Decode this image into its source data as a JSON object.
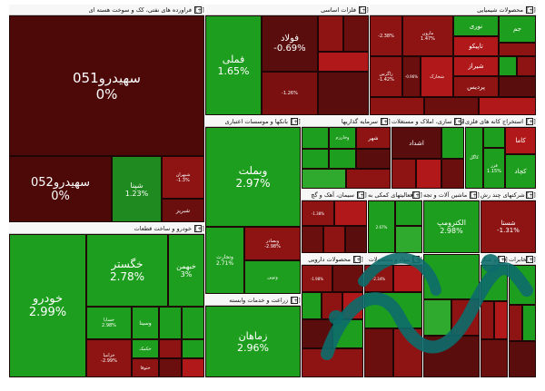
{
  "colors": {
    "strong_green": "#1e9e1e",
    "light_green": "#2faa2f",
    "dark_red": "#5a0d0d",
    "red": "#8e1414",
    "bright_red": "#b0181a",
    "neutral": "#4a0909",
    "header_bg": "#f7f7f7"
  },
  "expand_label": "[+]",
  "sectors": [
    {
      "title": "فراورده های نفتی، کک و سوخت هسته ای"
    },
    {
      "title": "فلزات اساسی"
    },
    {
      "title": "محصولات شیمیایی"
    },
    {
      "title": "بانکها و موسسات اعتباری"
    },
    {
      "title": "سرمایه گذاریها"
    },
    {
      "title": "انبوه سازی، املاک و مستغلات"
    },
    {
      "title": "استخراج کانه های فلزی"
    },
    {
      "title": "خودرو و ساخت قطعات"
    },
    {
      "title": "سیمان، آهک و گچ"
    },
    {
      "title": "فعالیتهای کمکی به"
    },
    {
      "title": "ماشین آلات و تجه"
    },
    {
      "title": "شرکتهای چند رش"
    },
    {
      "title": "محصولات دارویی"
    },
    {
      "title": "مواد و محصولات"
    },
    {
      "title": "قند و شکر"
    },
    {
      "title": "مخابرات"
    },
    {
      "title": "زراعت و خدمات وابسته"
    }
  ],
  "tiles": {
    "sahidaro051": {
      "name": "سهیدرو051",
      "change": "0%"
    },
    "sahidaro052": {
      "name": "سهیدرو052",
      "change": "0%"
    },
    "shapna": {
      "name": "شپنا",
      "change": "1.23%"
    },
    "shabriz": {
      "name": "شبریز"
    },
    "shbahran": {
      "name": "شبهران",
      "change": "-1.3%"
    },
    "fameli": {
      "name": "فملی",
      "change": "1.65%"
    },
    "foolad": {
      "name": "فولاد",
      "change": "-0.69%"
    },
    "fakhoz": {
      "change": "-1.26%"
    },
    "chem_a": {
      "change": "-2.38%"
    },
    "marun": {
      "name": "مارون",
      "change": "1.47%"
    },
    "nouri": {
      "name": "نوری"
    },
    "tapico": {
      "name": "تاپیکو"
    },
    "shiraz": {
      "name": "شیراز"
    },
    "jam": {
      "name": "جم"
    },
    "shkhark": {
      "name": "شخارک"
    },
    "pardis": {
      "name": "پردیس"
    },
    "zagros": {
      "name": "زاگرس",
      "change": "-1.42%"
    },
    "chem_b": {
      "change": "-0.96%"
    },
    "vobemellat": {
      "name": "وبملت",
      "change": "2.97%"
    },
    "vtejarat": {
      "name": "وتجارت",
      "change": "2.71%"
    },
    "vbsader": {
      "name": "وبصادر",
      "change": "-2.98%"
    },
    "vtoein": {
      "name": "وتوین"
    },
    "vakhrez": {
      "name": "وخارزم"
    },
    "shahr": {
      "name": "شهر"
    },
    "shastan": {
      "name": "شستا"
    },
    "ashdad": {
      "name": "اشداد"
    },
    "kagol": {
      "name": "کاگل"
    },
    "kachad": {
      "name": "کچاد"
    },
    "fazr": {
      "name": "فزر",
      "change": "1.15%"
    },
    "kamli": {
      "name": "کاما"
    },
    "khodro": {
      "name": "خودرو",
      "change": "2.99%"
    },
    "khgostar": {
      "name": "خگستر",
      "change": "2.78%"
    },
    "khbahman": {
      "name": "خبهمن",
      "change": "3%"
    },
    "khsapa": {
      "name": "خساپا",
      "change": "2.98%"
    },
    "khzamia": {
      "name": "خزامیا",
      "change": "-2.99%"
    },
    "khkamak": {
      "name": "خکمک"
    },
    "khfoula": {
      "name": "ختوقا"
    },
    "vsina": {
      "name": "وسینا"
    },
    "zamahan": {
      "name": "زماهان",
      "change": "2.96%"
    },
    "alkoroma": {
      "name": "الکترومپ",
      "change": "2.98%"
    },
    "shasta": {
      "name": "شستا",
      "change": "-1.31%"
    },
    "sanem": {
      "change": "-1.38%"
    },
    "semento": {
      "change": "2.67%"
    },
    "misc1": {
      "change": "-1.98%"
    },
    "misc2": {
      "change": "-2.34%"
    }
  }
}
